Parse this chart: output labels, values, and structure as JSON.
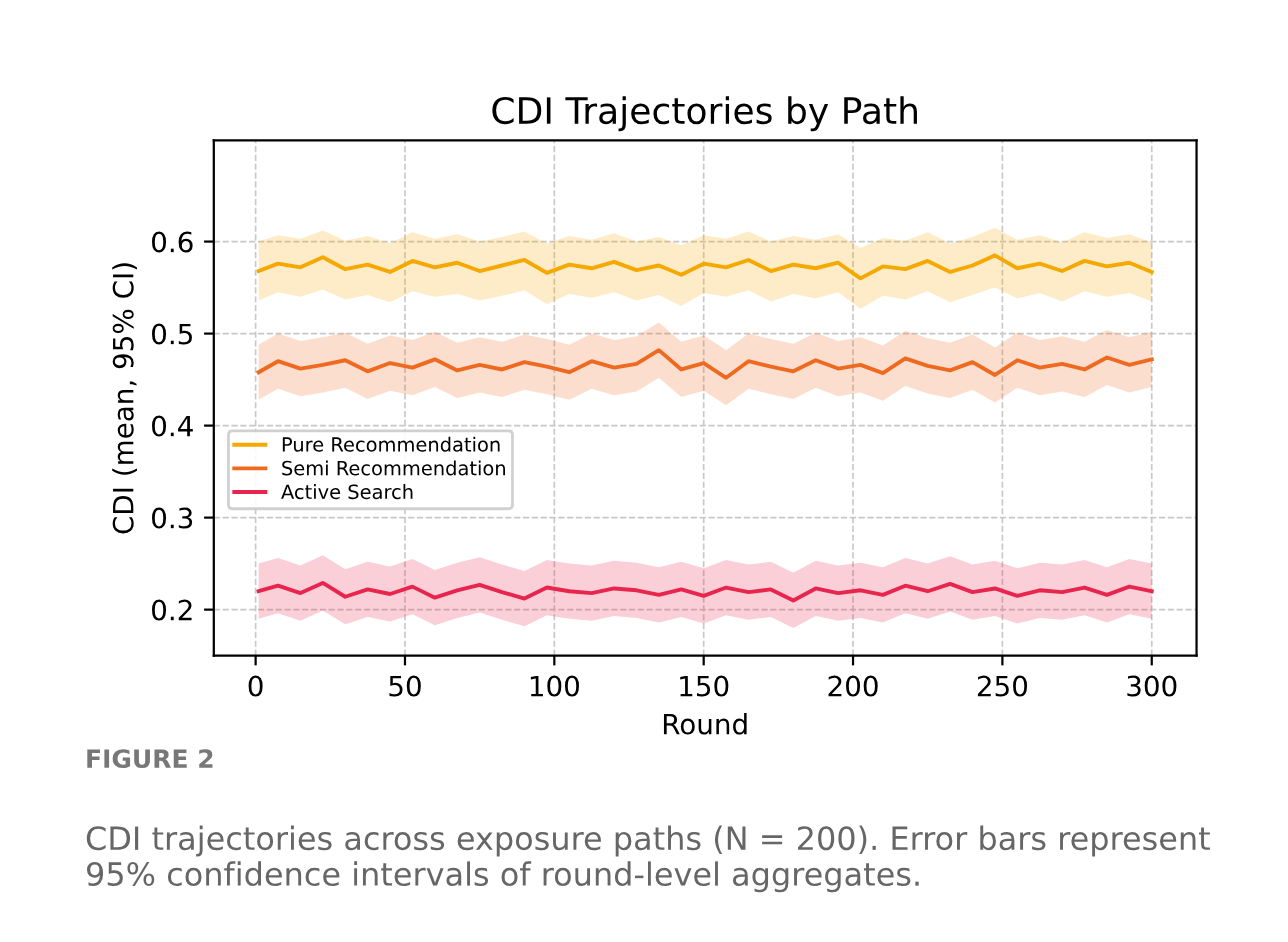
{
  "chart_data": {
    "type": "line",
    "title": "CDI Trajectories by Path",
    "xlabel": "Round",
    "ylabel": "CDI (mean, 95% CI)",
    "x": [
      1,
      7.5,
      15,
      22.5,
      30,
      37.5,
      45,
      52.5,
      60,
      67.5,
      75,
      82.5,
      90,
      97.5,
      105,
      112.5,
      120,
      127.5,
      135,
      142.5,
      150,
      157.5,
      165,
      172.5,
      180,
      187.5,
      195,
      202.5,
      210,
      217.5,
      225,
      232.5,
      240,
      247.5,
      255,
      262.5,
      270,
      277.5,
      285,
      292.5,
      300
    ],
    "series": [
      {
        "name": "Pure Recommendation",
        "color": "#f5a800",
        "values": [
          0.568,
          0.576,
          0.572,
          0.583,
          0.57,
          0.575,
          0.567,
          0.579,
          0.572,
          0.577,
          0.568,
          0.574,
          0.58,
          0.566,
          0.575,
          0.571,
          0.578,
          0.569,
          0.574,
          0.564,
          0.576,
          0.572,
          0.58,
          0.568,
          0.575,
          0.571,
          0.577,
          0.56,
          0.573,
          0.57,
          0.579,
          0.567,
          0.574,
          0.585,
          0.571,
          0.576,
          0.568,
          0.579,
          0.573,
          0.577,
          0.567
        ],
        "lower": [
          0.536,
          0.545,
          0.54,
          0.548,
          0.537,
          0.542,
          0.534,
          0.546,
          0.54,
          0.543,
          0.536,
          0.541,
          0.547,
          0.532,
          0.543,
          0.539,
          0.545,
          0.536,
          0.542,
          0.53,
          0.544,
          0.54,
          0.547,
          0.535,
          0.543,
          0.538,
          0.545,
          0.527,
          0.541,
          0.537,
          0.546,
          0.534,
          0.542,
          0.55,
          0.538,
          0.544,
          0.535,
          0.546,
          0.54,
          0.544,
          0.535
        ],
        "upper": [
          0.6,
          0.607,
          0.603,
          0.612,
          0.601,
          0.606,
          0.598,
          0.61,
          0.603,
          0.608,
          0.6,
          0.605,
          0.611,
          0.598,
          0.606,
          0.602,
          0.609,
          0.6,
          0.605,
          0.596,
          0.607,
          0.603,
          0.611,
          0.6,
          0.606,
          0.602,
          0.608,
          0.593,
          0.604,
          0.601,
          0.61,
          0.598,
          0.605,
          0.615,
          0.602,
          0.607,
          0.599,
          0.61,
          0.604,
          0.608,
          0.599
        ]
      },
      {
        "name": "Semi Recommendation",
        "color": "#ef6a21",
        "values": [
          0.458,
          0.47,
          0.462,
          0.466,
          0.471,
          0.459,
          0.468,
          0.463,
          0.472,
          0.46,
          0.466,
          0.461,
          0.469,
          0.464,
          0.458,
          0.47,
          0.463,
          0.467,
          0.482,
          0.461,
          0.468,
          0.452,
          0.47,
          0.464,
          0.459,
          0.471,
          0.462,
          0.466,
          0.457,
          0.473,
          0.465,
          0.46,
          0.469,
          0.455,
          0.471,
          0.463,
          0.467,
          0.461,
          0.474,
          0.466,
          0.472
        ],
        "lower": [
          0.428,
          0.44,
          0.432,
          0.436,
          0.441,
          0.429,
          0.438,
          0.433,
          0.442,
          0.43,
          0.436,
          0.431,
          0.439,
          0.434,
          0.428,
          0.44,
          0.433,
          0.437,
          0.452,
          0.431,
          0.438,
          0.422,
          0.44,
          0.434,
          0.429,
          0.441,
          0.432,
          0.436,
          0.427,
          0.443,
          0.435,
          0.43,
          0.439,
          0.425,
          0.441,
          0.433,
          0.437,
          0.431,
          0.444,
          0.436,
          0.442
        ],
        "upper": [
          0.488,
          0.5,
          0.492,
          0.496,
          0.501,
          0.489,
          0.498,
          0.493,
          0.502,
          0.49,
          0.496,
          0.491,
          0.499,
          0.494,
          0.488,
          0.5,
          0.493,
          0.497,
          0.512,
          0.491,
          0.498,
          0.482,
          0.5,
          0.494,
          0.489,
          0.501,
          0.492,
          0.496,
          0.487,
          0.503,
          0.495,
          0.49,
          0.499,
          0.485,
          0.501,
          0.493,
          0.497,
          0.491,
          0.504,
          0.496,
          0.502
        ]
      },
      {
        "name": "Active Search",
        "color": "#e8264d",
        "values": [
          0.22,
          0.226,
          0.218,
          0.229,
          0.214,
          0.222,
          0.217,
          0.225,
          0.213,
          0.221,
          0.227,
          0.219,
          0.212,
          0.224,
          0.22,
          0.218,
          0.223,
          0.221,
          0.216,
          0.222,
          0.215,
          0.224,
          0.219,
          0.222,
          0.21,
          0.223,
          0.218,
          0.221,
          0.216,
          0.226,
          0.22,
          0.228,
          0.219,
          0.223,
          0.215,
          0.221,
          0.219,
          0.224,
          0.216,
          0.225,
          0.22
        ],
        "lower": [
          0.19,
          0.196,
          0.188,
          0.199,
          0.184,
          0.192,
          0.187,
          0.195,
          0.183,
          0.191,
          0.197,
          0.189,
          0.182,
          0.194,
          0.19,
          0.188,
          0.193,
          0.191,
          0.186,
          0.192,
          0.185,
          0.194,
          0.189,
          0.192,
          0.18,
          0.193,
          0.188,
          0.191,
          0.186,
          0.196,
          0.19,
          0.198,
          0.189,
          0.193,
          0.185,
          0.191,
          0.189,
          0.194,
          0.186,
          0.195,
          0.19
        ],
        "upper": [
          0.25,
          0.256,
          0.248,
          0.259,
          0.244,
          0.252,
          0.247,
          0.255,
          0.243,
          0.251,
          0.257,
          0.249,
          0.242,
          0.254,
          0.25,
          0.248,
          0.253,
          0.251,
          0.246,
          0.252,
          0.245,
          0.254,
          0.249,
          0.252,
          0.24,
          0.253,
          0.248,
          0.251,
          0.246,
          0.256,
          0.25,
          0.258,
          0.249,
          0.253,
          0.245,
          0.251,
          0.249,
          0.254,
          0.246,
          0.255,
          0.25
        ]
      }
    ],
    "xlim": [
      -14,
      315
    ],
    "xticks": [
      0,
      50,
      100,
      150,
      200,
      250,
      300
    ],
    "ylim": [
      0.15,
      0.71
    ],
    "yticks": [
      0.2,
      0.3,
      0.4,
      0.5,
      0.6
    ],
    "grid": true,
    "legend": "center left",
    "marker": "none",
    "line_style": "solid",
    "annotations": [
      "FIGURE 2",
      "CDI trajectories across exposure paths (N = 200). Error bars represent 95% confidence intervals of round-level aggregates."
    ]
  }
}
